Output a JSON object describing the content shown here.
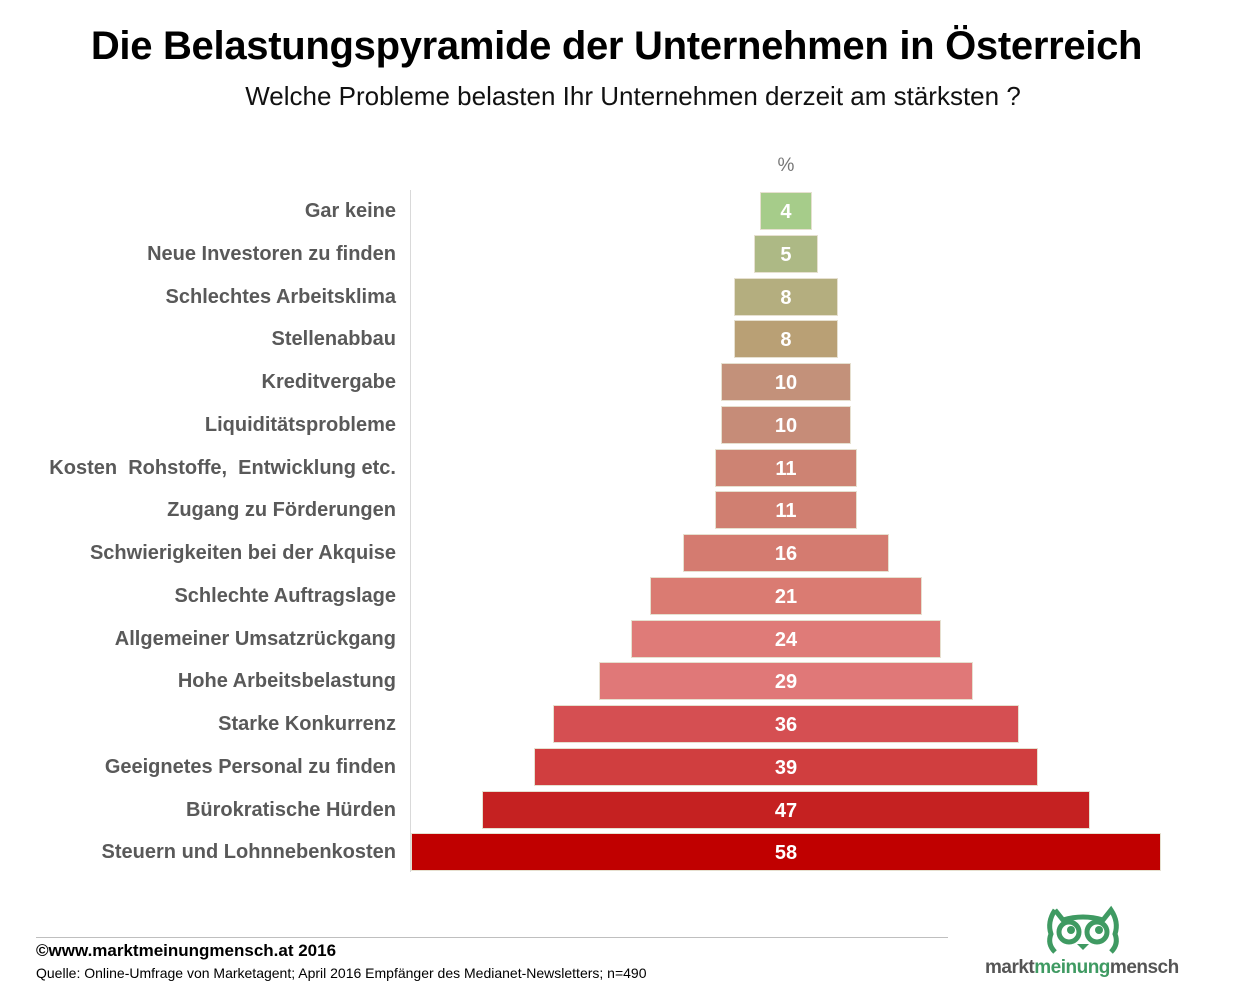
{
  "chart_data": {
    "type": "bar",
    "orientation": "horizontal-centered-pyramid",
    "title": "Die Belastungspyramide der Unternehmen in Österreich",
    "subtitle": "Welche Probleme belasten Ihr Unternehmen derzeit am stärksten ?",
    "unit": "%",
    "categories": [
      "Gar keine",
      "Neue Investoren zu finden",
      "Schlechtes Arbeitsklima",
      "Stellenabbau",
      "Kreditvergabe",
      "Liquiditätsprobleme",
      "Kosten  Rohstoffe,  Entwicklung etc.",
      "Zugang zu Förderungen",
      "Schwierigkeiten bei der Akquise",
      "Schlechte Auftragslage",
      "Allgemeiner Umsatzrückgang",
      "Hohe Arbeitsbelastung",
      "Starke Konkurrenz",
      "Geeignetes Personal zu finden",
      "Bürokratische Hürden",
      "Steuern und Lohnnebenkosten"
    ],
    "values": [
      4,
      5,
      8,
      8,
      10,
      10,
      11,
      11,
      16,
      21,
      24,
      29,
      36,
      39,
      47,
      58
    ],
    "colors": [
      "#a6cc8a",
      "#adb985",
      "#b4ae7f",
      "#b9a075",
      "#c3917a",
      "#c68c78",
      "#cd8373",
      "#d07f71",
      "#d47b70",
      "#da7b72",
      "#df7b78",
      "#e07878",
      "#d54f52",
      "#d03e3f",
      "#c52121",
      "#c00000"
    ],
    "grid": false,
    "legend": "none"
  },
  "footer": {
    "copyright": "©www.marktmeinungmensch.at 2016",
    "source": "Quelle: Online-Umfrage von Marketagent; April 2016  Empfänger des Medianet-Newsletters; n=490"
  },
  "logo": {
    "part1": "markt",
    "part2": "meinung",
    "part3": "mensch",
    "icon": "owl-icon",
    "color": "#3f9a62"
  }
}
